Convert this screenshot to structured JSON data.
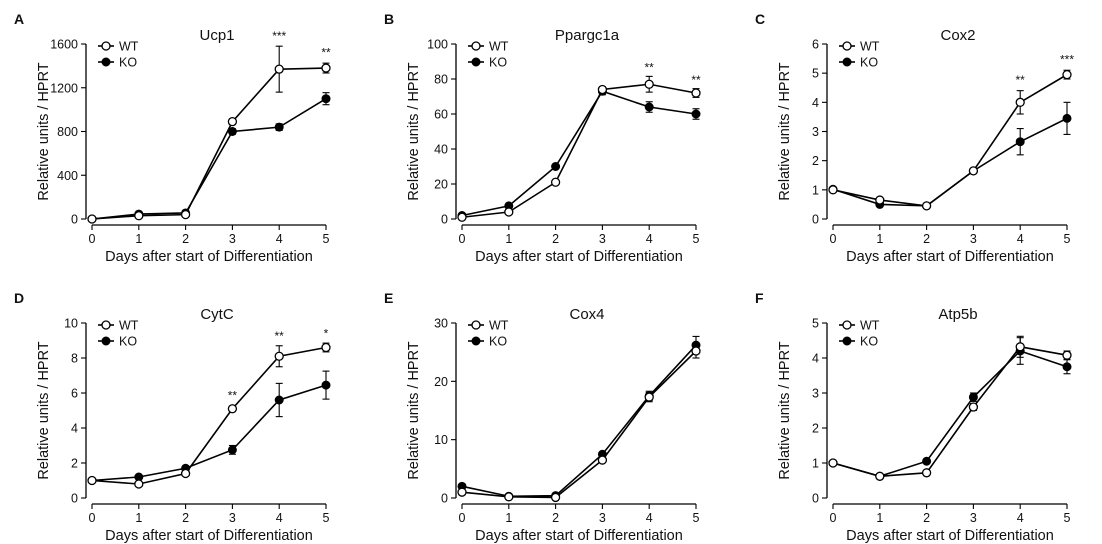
{
  "chart_data": [
    {
      "type": "line",
      "panel_letter": "A",
      "title": "Ucp1",
      "xlabel": "Days after start of Differentiation",
      "ylabel": "Relative units / HPRT",
      "x": [
        0,
        1,
        2,
        3,
        4,
        5
      ],
      "xlim": [
        0,
        5
      ],
      "ylim": [
        0,
        1600
      ],
      "yticks": [
        "0",
        "400",
        "800",
        "1200",
        "1600"
      ],
      "legend": [
        "WT",
        "KO"
      ],
      "legend_position": "top-left",
      "series": [
        {
          "name": "WT",
          "marker": "open-circle",
          "values": [
            0,
            30,
            40,
            890,
            1370,
            1380
          ],
          "errors": [
            0,
            10,
            10,
            25,
            210,
            45
          ]
        },
        {
          "name": "KO",
          "marker": "filled-circle",
          "values": [
            0,
            45,
            55,
            800,
            840,
            1100
          ],
          "errors": [
            0,
            10,
            10,
            25,
            30,
            55
          ]
        }
      ],
      "annotations": [
        {
          "x": 4,
          "text": "***",
          "at": 1600
        },
        {
          "x": 5,
          "text": "**",
          "at": 1450
        }
      ]
    },
    {
      "type": "line",
      "panel_letter": "B",
      "title": "Ppargc1a",
      "xlabel": "Days after start of Differentiation",
      "ylabel": "Relative units / HPRT",
      "x": [
        0,
        1,
        2,
        3,
        4,
        5
      ],
      "xlim": [
        0,
        5
      ],
      "ylim": [
        0,
        100
      ],
      "yticks": [
        "0",
        "20",
        "40",
        "60",
        "80",
        "100"
      ],
      "legend": [
        "WT",
        "KO"
      ],
      "legend_position": "top-left",
      "series": [
        {
          "name": "WT",
          "marker": "open-circle",
          "values": [
            1,
            4,
            21,
            74,
            77,
            72
          ],
          "errors": [
            0,
            0.5,
            1,
            1.5,
            4.5,
            2.5
          ]
        },
        {
          "name": "KO",
          "marker": "filled-circle",
          "values": [
            2,
            7.5,
            30,
            73,
            64,
            60
          ],
          "errors": [
            0,
            0.5,
            1,
            2,
            3,
            3
          ]
        }
      ],
      "annotations": [
        {
          "x": 4,
          "text": "**",
          "at": 82
        },
        {
          "x": 5,
          "text": "**",
          "at": 75
        }
      ]
    },
    {
      "type": "line",
      "panel_letter": "C",
      "title": "Cox2",
      "xlabel": "Days after start of Differentiation",
      "ylabel": "Relative units / HPRT",
      "x": [
        0,
        1,
        2,
        3,
        4,
        5
      ],
      "xlim": [
        0,
        5
      ],
      "ylim": [
        0,
        6
      ],
      "yticks": [
        "0",
        "1",
        "2",
        "3",
        "4",
        "5",
        "6"
      ],
      "legend": [
        "WT",
        "KO"
      ],
      "legend_position": "top-left",
      "series": [
        {
          "name": "WT",
          "marker": "open-circle",
          "values": [
            1,
            0.65,
            0.45,
            1.65,
            4.0,
            4.95
          ],
          "errors": [
            0,
            0.05,
            0.03,
            0.05,
            0.4,
            0.15
          ]
        },
        {
          "name": "KO",
          "marker": "filled-circle",
          "values": [
            1.02,
            0.5,
            0.45,
            1.65,
            2.65,
            3.45
          ],
          "errors": [
            0,
            0.05,
            0.03,
            0.05,
            0.45,
            0.55
          ]
        }
      ],
      "annotations": [
        {
          "x": 4,
          "text": "**",
          "at": 4.5
        },
        {
          "x": 5,
          "text": "***",
          "at": 5.2
        }
      ]
    },
    {
      "type": "line",
      "panel_letter": "D",
      "title": "CytC",
      "xlabel": "Days after start of Differentiation",
      "ylabel": "Relative units / HPRT",
      "x": [
        0,
        1,
        2,
        3,
        4,
        5
      ],
      "xlim": [
        0,
        5
      ],
      "ylim": [
        0,
        10
      ],
      "yticks": [
        "0",
        "2",
        "4",
        "6",
        "8",
        "10"
      ],
      "legend": [
        "WT",
        "KO"
      ],
      "legend_position": "top-left",
      "series": [
        {
          "name": "WT",
          "marker": "open-circle",
          "values": [
            1,
            0.8,
            1.4,
            5.1,
            8.1,
            8.6
          ],
          "errors": [
            0,
            0.05,
            0.1,
            0.15,
            0.6,
            0.25
          ]
        },
        {
          "name": "KO",
          "marker": "filled-circle",
          "values": [
            1,
            1.2,
            1.7,
            2.75,
            5.6,
            6.45
          ],
          "errors": [
            0,
            0.05,
            0.1,
            0.25,
            0.95,
            0.8
          ]
        }
      ],
      "annotations": [
        {
          "x": 3,
          "text": "**",
          "at": 5.4
        },
        {
          "x": 4,
          "text": "**",
          "at": 8.8
        },
        {
          "x": 5,
          "text": "*",
          "at": 8.95
        }
      ]
    },
    {
      "type": "line",
      "panel_letter": "E",
      "title": "Cox4",
      "xlabel": "Days after start of Differentiation",
      "ylabel": "Relative units / HPRT",
      "x": [
        0,
        1,
        2,
        3,
        4,
        5
      ],
      "xlim": [
        0,
        5
      ],
      "ylim": [
        0,
        30
      ],
      "yticks": [
        "0",
        "10",
        "20",
        "30"
      ],
      "legend": [
        "WT",
        "KO"
      ],
      "legend_position": "top-left",
      "series": [
        {
          "name": "WT",
          "marker": "open-circle",
          "values": [
            1,
            0.2,
            0.1,
            6.5,
            17.3,
            25.2
          ],
          "errors": [
            0,
            0.1,
            0.1,
            0.3,
            0.8,
            1.2
          ]
        },
        {
          "name": "KO",
          "marker": "filled-circle",
          "values": [
            2,
            0.3,
            0.4,
            7.5,
            17.5,
            26.2
          ],
          "errors": [
            0,
            0.1,
            0.1,
            0.3,
            0.8,
            1.5
          ]
        }
      ],
      "annotations": []
    },
    {
      "type": "line",
      "panel_letter": "F",
      "title": "Atp5b",
      "xlabel": "Days after start of Differentiation",
      "ylabel": "Relative units / HPRT",
      "x": [
        0,
        1,
        2,
        3,
        4,
        5
      ],
      "xlim": [
        0,
        5
      ],
      "ylim": [
        0,
        5
      ],
      "yticks": [
        "0",
        "1",
        "2",
        "3",
        "4",
        "5"
      ],
      "legend": [
        "WT",
        "KO"
      ],
      "legend_position": "top-left",
      "series": [
        {
          "name": "WT",
          "marker": "open-circle",
          "values": [
            1,
            0.62,
            0.72,
            2.6,
            4.32,
            4.08
          ],
          "errors": [
            0,
            0.03,
            0.03,
            0.1,
            0.3,
            0.12
          ]
        },
        {
          "name": "KO",
          "marker": "filled-circle",
          "values": [
            1,
            0.62,
            1.05,
            2.88,
            4.2,
            3.75
          ],
          "errors": [
            0,
            0.03,
            0.03,
            0.12,
            0.38,
            0.2
          ]
        }
      ],
      "annotations": []
    }
  ]
}
